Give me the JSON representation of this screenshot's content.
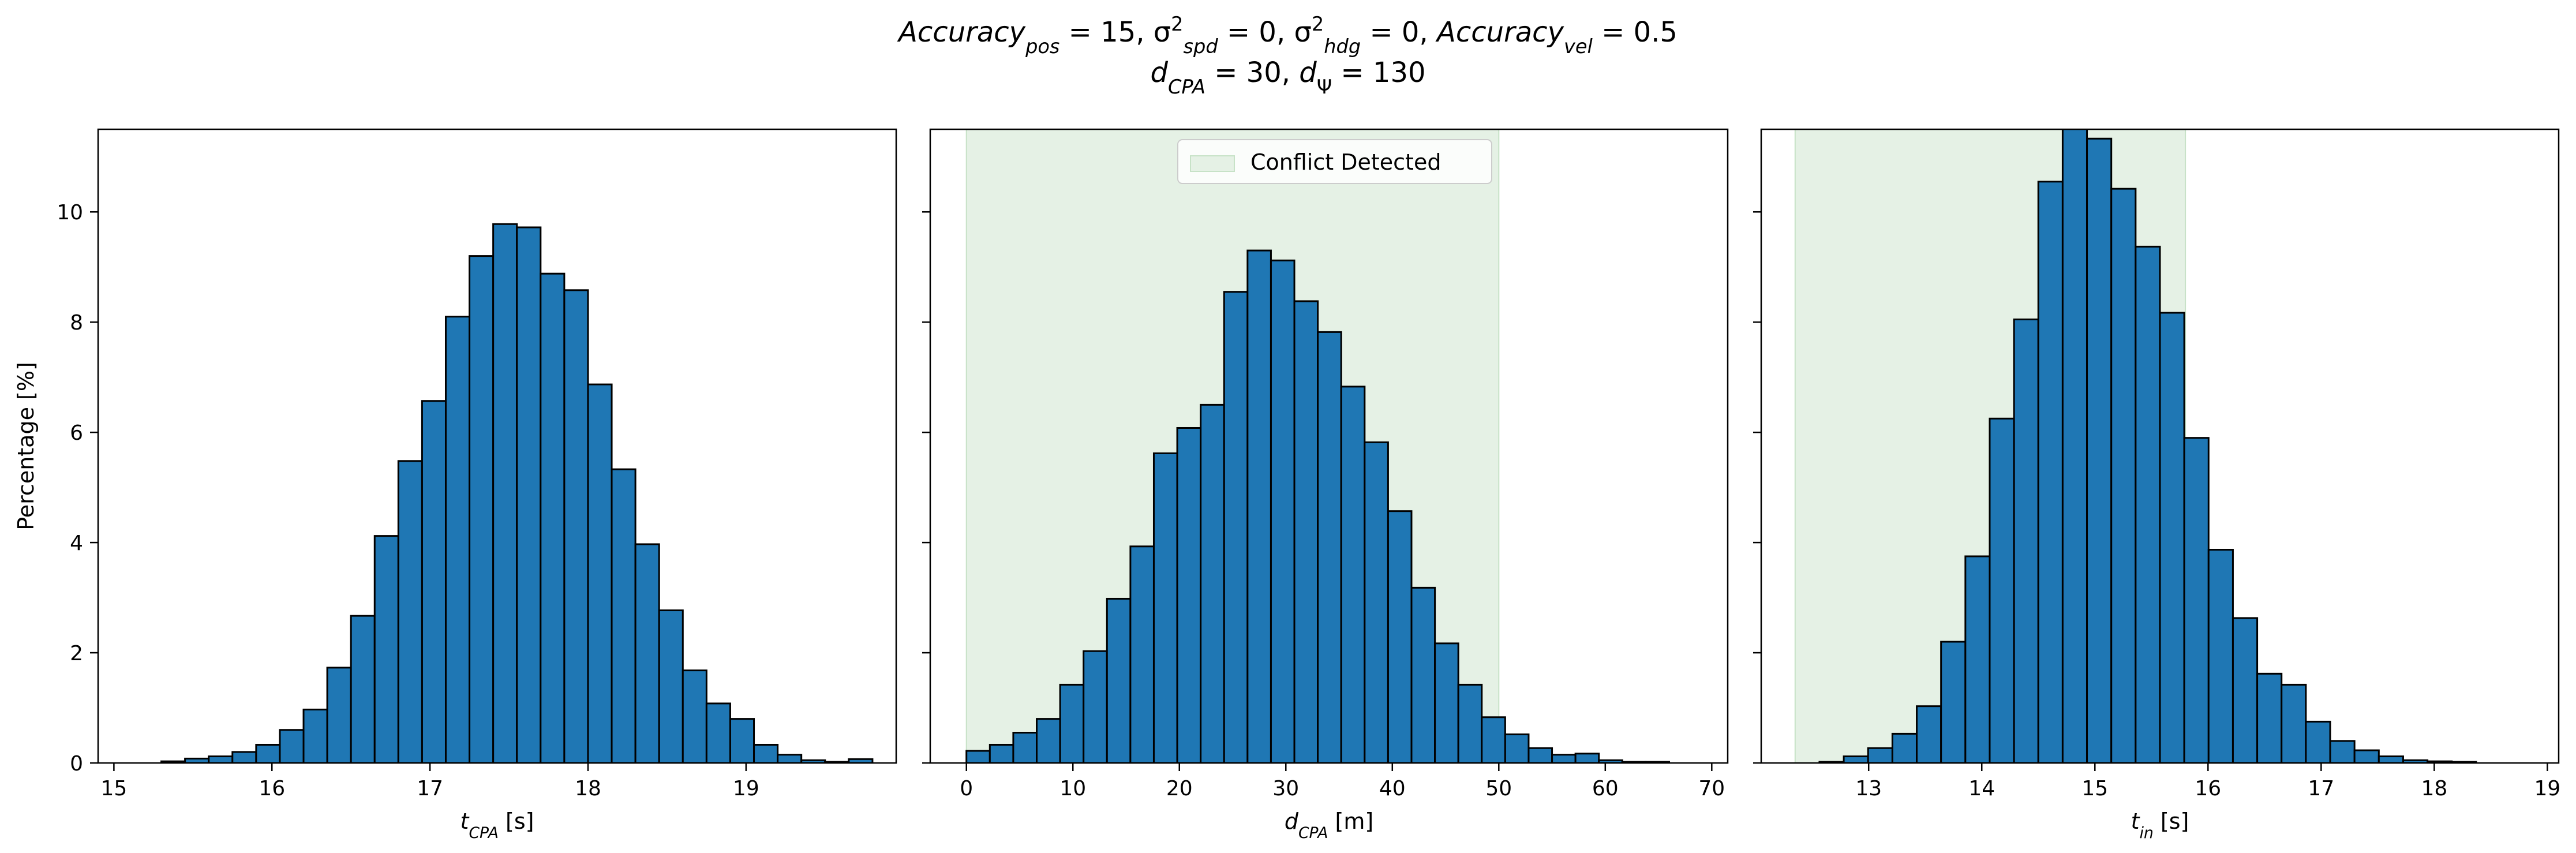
{
  "title": {
    "line1": [
      {
        "t": "Accuracy",
        "i": true
      },
      {
        "t": "pos",
        "i": true,
        "sub": true
      },
      {
        "t": " = 15, σ"
      },
      {
        "t": "2",
        "sup": true
      },
      {
        "t": "spd",
        "i": true,
        "sub": true
      },
      {
        "t": " = 0, σ"
      },
      {
        "t": "2",
        "sup": true
      },
      {
        "t": "hdg",
        "i": true,
        "sub": true
      },
      {
        "t": " = 0, "
      },
      {
        "t": "Accuracy",
        "i": true
      },
      {
        "t": "vel",
        "i": true,
        "sub": true
      },
      {
        "t": " = 0.5"
      }
    ],
    "line2": [
      {
        "t": "d",
        "i": true
      },
      {
        "t": "CPA",
        "i": true,
        "sub": true
      },
      {
        "t": " = 30, "
      },
      {
        "t": "d",
        "i": true
      },
      {
        "t": "Ψ",
        "sub": true
      },
      {
        "t": " = 130"
      }
    ]
  },
  "colors": {
    "bar_fill": "#1f77b4",
    "bar_edge": "#000000",
    "conflict_fill": "#e5f1e5",
    "conflict_edge": "#c7e2c7",
    "legend_edge": "#cccccc"
  },
  "chart_data": [
    {
      "type": "bar",
      "xlabel": [
        {
          "t": "t",
          "i": true
        },
        {
          "t": "CPA",
          "i": true,
          "sub": true
        },
        {
          "t": " [s]"
        }
      ],
      "ylabel": "Percentage [%]",
      "xlim": [
        14.9,
        19.95
      ],
      "ylim": [
        0,
        11.5
      ],
      "xticks": [
        15,
        16,
        17,
        18,
        19
      ],
      "yticks": [
        0,
        2,
        4,
        6,
        8,
        10
      ],
      "bin_edges": [
        15.15,
        15.3,
        15.45,
        15.6,
        15.75,
        15.9,
        16.05,
        16.2,
        16.35,
        16.5,
        16.65,
        16.8,
        16.95,
        17.1,
        17.25,
        17.4,
        17.55,
        17.7,
        17.85,
        18.0,
        18.15,
        18.3,
        18.45,
        18.6,
        18.75,
        18.9,
        19.05,
        19.2,
        19.35,
        19.5,
        19.65,
        19.8
      ],
      "values": [
        0.0,
        0.03,
        0.08,
        0.12,
        0.2,
        0.33,
        0.6,
        0.97,
        1.73,
        2.67,
        4.12,
        5.48,
        6.57,
        8.1,
        9.2,
        9.78,
        9.72,
        8.88,
        8.58,
        6.87,
        5.33,
        3.97,
        2.77,
        1.68,
        1.08,
        0.8,
        0.33,
        0.15,
        0.05,
        0.02,
        0.07
      ],
      "conflict_region": null
    },
    {
      "type": "bar",
      "xlabel": [
        {
          "t": "d",
          "i": true
        },
        {
          "t": "CPA",
          "i": true,
          "sub": true
        },
        {
          "t": " [m]"
        }
      ],
      "ylabel": "",
      "xlim": [
        -3.4,
        71.5
      ],
      "ylim": [
        0,
        11.5
      ],
      "xticks": [
        0,
        10,
        20,
        30,
        40,
        50,
        60,
        70
      ],
      "yticks": [
        0,
        2,
        4,
        6,
        8,
        10
      ],
      "bin_edges": [
        0.0,
        2.2,
        4.4,
        6.6,
        8.8,
        11.0,
        13.2,
        15.4,
        17.6,
        19.8,
        22.0,
        24.2,
        26.4,
        28.6,
        30.8,
        33.0,
        35.2,
        37.4,
        39.6,
        41.8,
        44.0,
        46.2,
        48.4,
        50.6,
        52.8,
        55.0,
        57.2,
        59.4,
        61.6,
        63.8,
        66.0,
        68.2
      ],
      "values": [
        0.22,
        0.33,
        0.55,
        0.8,
        1.42,
        2.03,
        2.98,
        3.93,
        5.62,
        6.08,
        6.5,
        8.55,
        9.3,
        9.12,
        8.38,
        7.82,
        6.83,
        5.82,
        4.57,
        3.18,
        2.17,
        1.42,
        0.83,
        0.52,
        0.27,
        0.15,
        0.17,
        0.05,
        0.02,
        0.02,
        0.0
      ],
      "conflict_region": [
        0,
        50
      ],
      "legend": {
        "label": "Conflict Detected",
        "loc": "upper center"
      }
    },
    {
      "type": "bar",
      "xlabel": [
        {
          "t": "t",
          "i": true
        },
        {
          "t": "in",
          "i": true,
          "sub": true
        },
        {
          "t": " [s]"
        }
      ],
      "ylabel": "",
      "xlim": [
        12.05,
        19.1
      ],
      "ylim": [
        0,
        11.5
      ],
      "xticks": [
        13,
        14,
        15,
        16,
        17,
        18,
        19
      ],
      "yticks": [
        0,
        2,
        4,
        6,
        8,
        10
      ],
      "bin_edges": [
        12.35,
        12.565,
        12.78,
        12.995,
        13.21,
        13.425,
        13.64,
        13.855,
        14.07,
        14.285,
        14.5,
        14.715,
        14.93,
        15.145,
        15.36,
        15.575,
        15.79,
        16.005,
        16.22,
        16.435,
        16.65,
        16.865,
        17.08,
        17.295,
        17.51,
        17.725,
        17.94,
        18.155,
        18.37,
        18.585,
        18.8
      ],
      "values": [
        0.0,
        0.02,
        0.12,
        0.27,
        0.53,
        1.03,
        2.2,
        3.75,
        6.25,
        8.05,
        10.55,
        11.55,
        11.33,
        10.42,
        9.37,
        8.17,
        5.9,
        3.87,
        2.63,
        1.62,
        1.42,
        0.75,
        0.4,
        0.23,
        0.12,
        0.05,
        0.03,
        0.02,
        0.0,
        0.0
      ],
      "conflict_region": [
        12.35,
        15.8
      ]
    }
  ]
}
